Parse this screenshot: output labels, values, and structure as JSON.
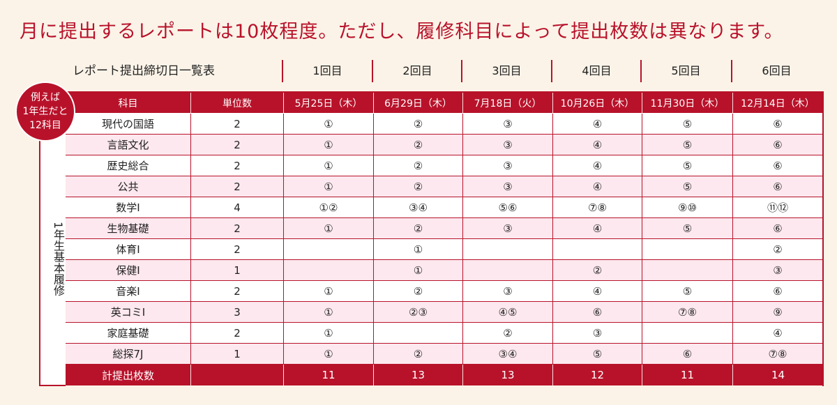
{
  "headline": "月に提出するレポートは10枚程度。ただし、履修科目によって提出枚数は異なります。",
  "schedule_title": "レポート提出締切日一覧表",
  "rounds": [
    "1回目",
    "2回目",
    "3回目",
    "4回目",
    "5回目",
    "6回目"
  ],
  "badge": {
    "line1": "例えば",
    "line2": "1年生だと",
    "line3": "12科目"
  },
  "side_label": "1年生基本履修",
  "table": {
    "header": {
      "subject": "科目",
      "credits": "単位数",
      "dates": [
        "5月25日（木）",
        "6月29日（木）",
        "7月18日（火）",
        "10月26日（木）",
        "11月30日（木）",
        "12月14日（木）"
      ]
    },
    "rows": [
      {
        "subject": "現代の国語",
        "credits": "2",
        "reports": [
          "①",
          "②",
          "③",
          "④",
          "⑤",
          "⑥"
        ]
      },
      {
        "subject": "言語文化",
        "credits": "2",
        "reports": [
          "①",
          "②",
          "③",
          "④",
          "⑤",
          "⑥"
        ]
      },
      {
        "subject": "歴史総合",
        "credits": "2",
        "reports": [
          "①",
          "②",
          "③",
          "④",
          "⑤",
          "⑥"
        ]
      },
      {
        "subject": "公共",
        "credits": "2",
        "reports": [
          "①",
          "②",
          "③",
          "④",
          "⑤",
          "⑥"
        ]
      },
      {
        "subject": "数学Ⅰ",
        "credits": "4",
        "reports": [
          "①②",
          "③④",
          "⑤⑥",
          "⑦⑧",
          "⑨⑩",
          "⑪⑫"
        ]
      },
      {
        "subject": "生物基礎",
        "credits": "2",
        "reports": [
          "①",
          "②",
          "③",
          "④",
          "⑤",
          "⑥"
        ]
      },
      {
        "subject": "体育Ⅰ",
        "credits": "2",
        "reports": [
          "",
          "①",
          "",
          "",
          "",
          "②"
        ]
      },
      {
        "subject": "保健Ⅰ",
        "credits": "1",
        "reports": [
          "",
          "①",
          "",
          "②",
          "",
          "③"
        ]
      },
      {
        "subject": "音楽Ⅰ",
        "credits": "2",
        "reports": [
          "①",
          "②",
          "③",
          "④",
          "⑤",
          "⑥"
        ]
      },
      {
        "subject": "英コミⅠ",
        "credits": "3",
        "reports": [
          "①",
          "②③",
          "④⑤",
          "⑥",
          "⑦⑧",
          "⑨"
        ]
      },
      {
        "subject": "家庭基礎",
        "credits": "2",
        "reports": [
          "①",
          "",
          "②",
          "③",
          "",
          "④"
        ]
      },
      {
        "subject": "総探7J",
        "credits": "1",
        "reports": [
          "①",
          "②",
          "③④",
          "⑤",
          "⑥",
          "⑦⑧"
        ]
      }
    ],
    "total": {
      "label": "計提出枚数",
      "credits": "",
      "values": [
        "11",
        "13",
        "13",
        "12",
        "11",
        "14"
      ]
    }
  },
  "colors": {
    "accent": "#b8122a",
    "background": "#fbf3e8",
    "row_alt": "#fce8ee"
  }
}
